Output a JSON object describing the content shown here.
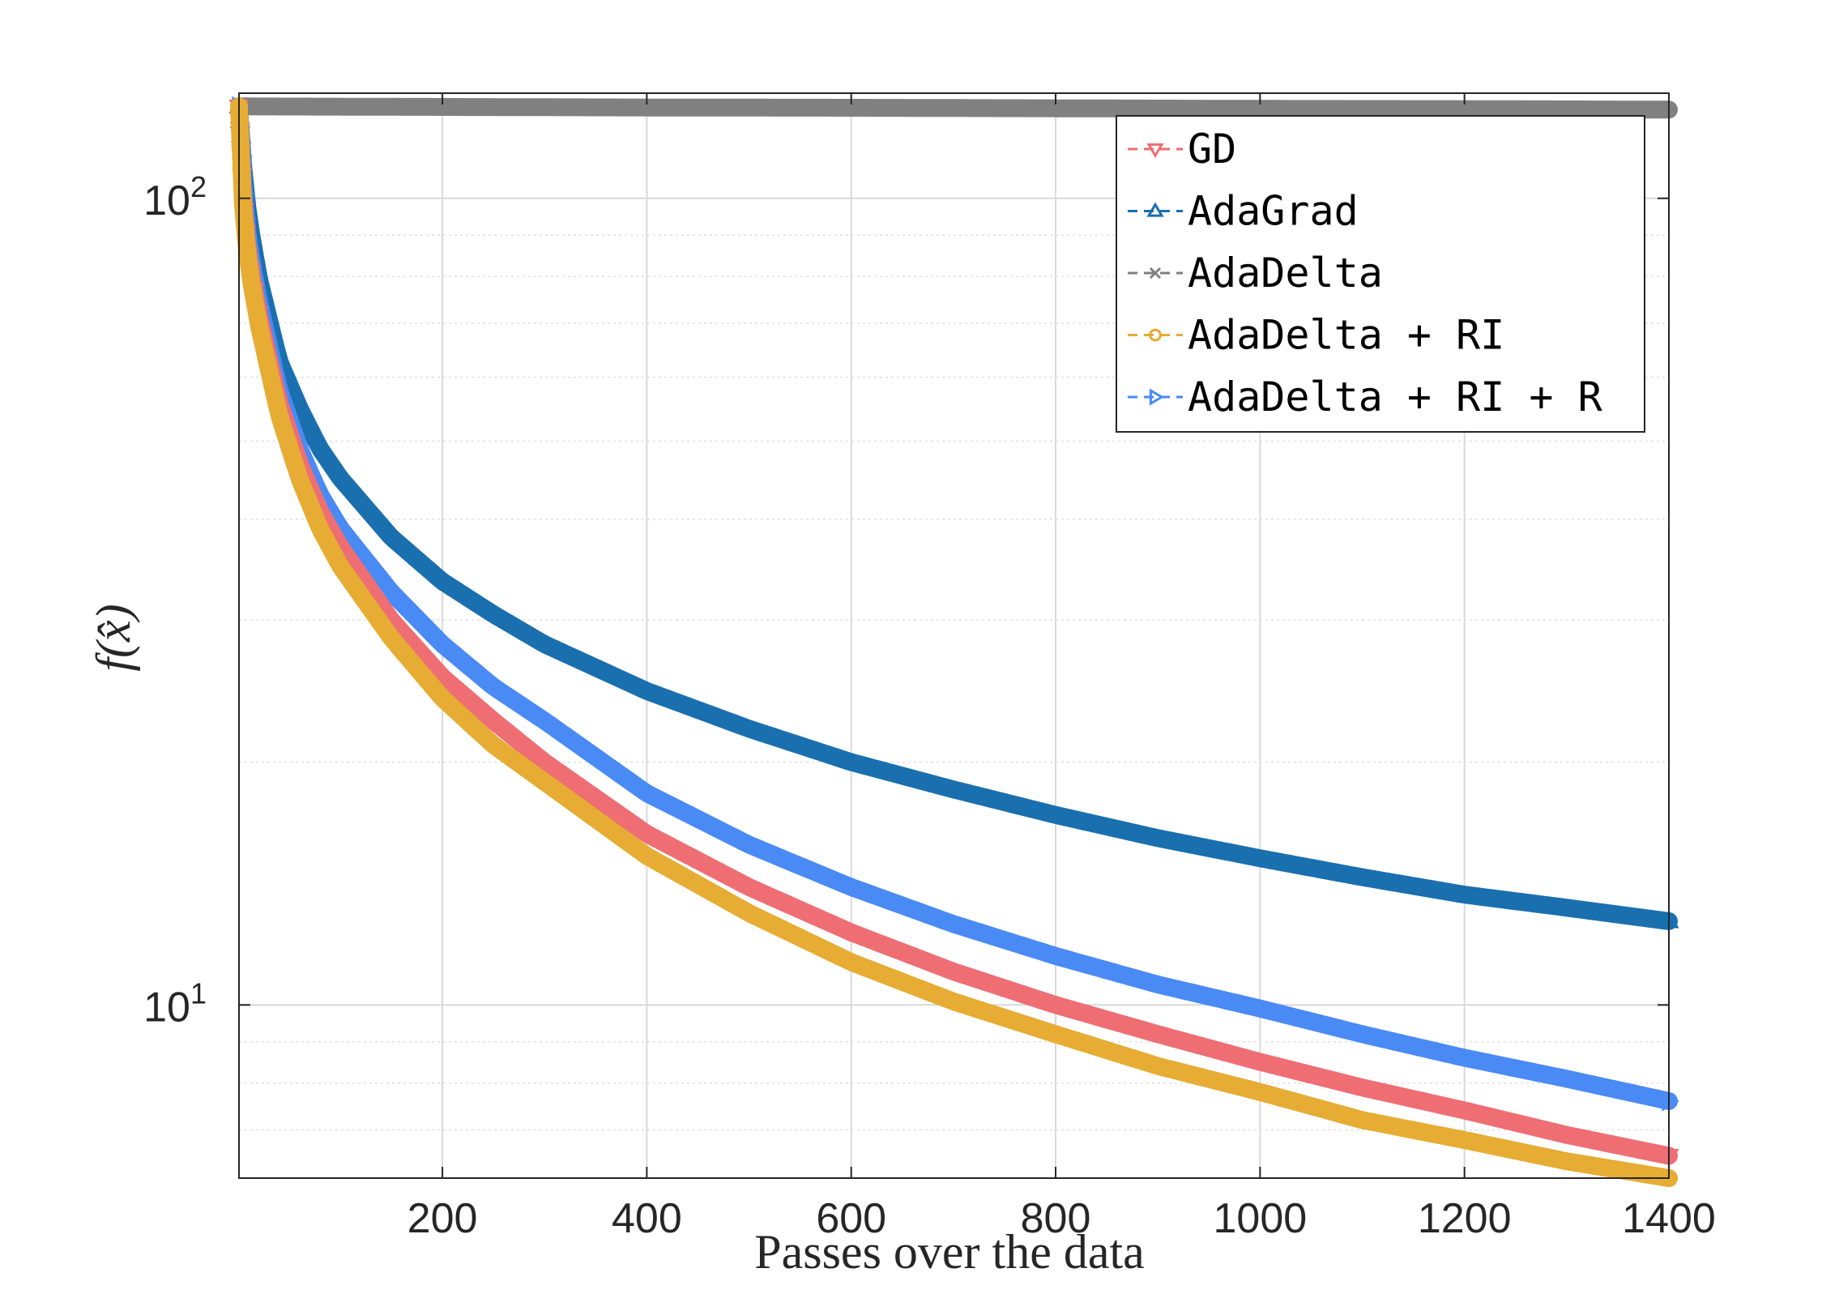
{
  "chart_data": {
    "type": "line",
    "title": "",
    "xlabel": "Passes over the data",
    "ylabel": "f(x̂)",
    "yscale": "log",
    "xlim": [
      1,
      1400
    ],
    "ylim": [
      6.1,
      135
    ],
    "grid": true,
    "legend_position": "top-right",
    "x_ticks": [
      200,
      400,
      600,
      800,
      1000,
      1200,
      1400
    ],
    "y_ticks": [
      {
        "value": 100,
        "base": "10",
        "exp": "2"
      },
      {
        "value": 10,
        "base": "10",
        "exp": "1"
      }
    ],
    "series": [
      {
        "name": "GD",
        "color": "#ee6e73",
        "marker": "triangle-down",
        "x": [
          1,
          5,
          10,
          20,
          40,
          60,
          80,
          100,
          150,
          200,
          250,
          300,
          400,
          500,
          600,
          700,
          800,
          900,
          1000,
          1100,
          1200,
          1300,
          1400
        ],
        "y": [
          130,
          100,
          85,
          72,
          56,
          47,
          41,
          37,
          30,
          25.5,
          22.5,
          20,
          16.3,
          14,
          12.3,
          11,
          10,
          9.2,
          8.5,
          7.9,
          7.4,
          6.9,
          6.5
        ]
      },
      {
        "name": "AdaGrad",
        "color": "#1a6faf",
        "marker": "triangle-up",
        "x": [
          1,
          5,
          10,
          20,
          40,
          60,
          80,
          100,
          150,
          200,
          250,
          300,
          400,
          500,
          600,
          700,
          800,
          900,
          1000,
          1100,
          1200,
          1300,
          1400
        ],
        "y": [
          130,
          110,
          95,
          80,
          63,
          55,
          49,
          45,
          38,
          33.5,
          30.5,
          28,
          24.5,
          22,
          20,
          18.5,
          17.2,
          16.1,
          15.2,
          14.4,
          13.7,
          13.2,
          12.7
        ]
      },
      {
        "name": "AdaDelta",
        "color": "#808080",
        "marker": "x",
        "x": [
          1,
          100,
          200,
          400,
          600,
          800,
          1000,
          1200,
          1400
        ],
        "y": [
          130,
          129.9,
          129.8,
          129.6,
          129.5,
          129.3,
          129.1,
          129.0,
          128.8
        ]
      },
      {
        "name": "AdaDelta + RI",
        "color": "#e6ac33",
        "marker": "circle",
        "x": [
          1,
          5,
          10,
          20,
          40,
          60,
          80,
          100,
          150,
          200,
          250,
          300,
          400,
          500,
          600,
          700,
          800,
          900,
          1000,
          1100,
          1200,
          1300,
          1400
        ],
        "y": [
          130,
          98,
          83,
          70,
          54,
          45,
          39,
          35,
          28.5,
          24,
          21,
          18.9,
          15.3,
          13,
          11.3,
          10.1,
          9.2,
          8.4,
          7.8,
          7.2,
          6.8,
          6.4,
          6.1
        ]
      },
      {
        "name": "AdaDelta + RI + R",
        "color": "#4a8af4",
        "marker": "triangle-right",
        "x": [
          1,
          5,
          10,
          20,
          40,
          60,
          80,
          100,
          150,
          200,
          250,
          300,
          400,
          500,
          600,
          700,
          800,
          900,
          1000,
          1100,
          1200,
          1300,
          1400
        ],
        "y": [
          130,
          105,
          88,
          75,
          58,
          49,
          43,
          39,
          32.5,
          28,
          24.8,
          22.5,
          18.3,
          15.8,
          14,
          12.6,
          11.5,
          10.6,
          9.9,
          9.2,
          8.6,
          8.1,
          7.6
        ]
      }
    ]
  }
}
